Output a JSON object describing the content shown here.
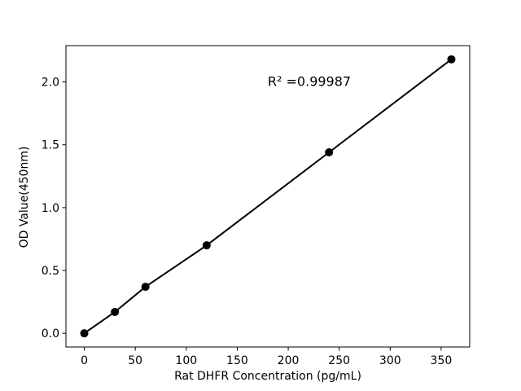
{
  "chart_data": {
    "type": "line",
    "title": "",
    "xlabel": "Rat DHFR Concentration (pg/mL)",
    "ylabel": "OD Value(450nm)",
    "annotation": "R² =0.99987",
    "x": [
      0,
      30,
      60,
      120,
      240,
      360
    ],
    "y": [
      0.0,
      0.17,
      0.37,
      0.7,
      1.44,
      2.18
    ],
    "xticks": [
      0,
      50,
      100,
      150,
      200,
      250,
      300,
      350
    ],
    "yticks": [
      0.0,
      0.5,
      1.0,
      1.5,
      2.0
    ],
    "xlim": [
      -18,
      378
    ],
    "ylim": [
      -0.109,
      2.289
    ],
    "grid": false,
    "legend": "none",
    "line_color": "#000000",
    "marker_color": "#000000",
    "axis_color": "#000000",
    "background_color": "#ffffff"
  }
}
